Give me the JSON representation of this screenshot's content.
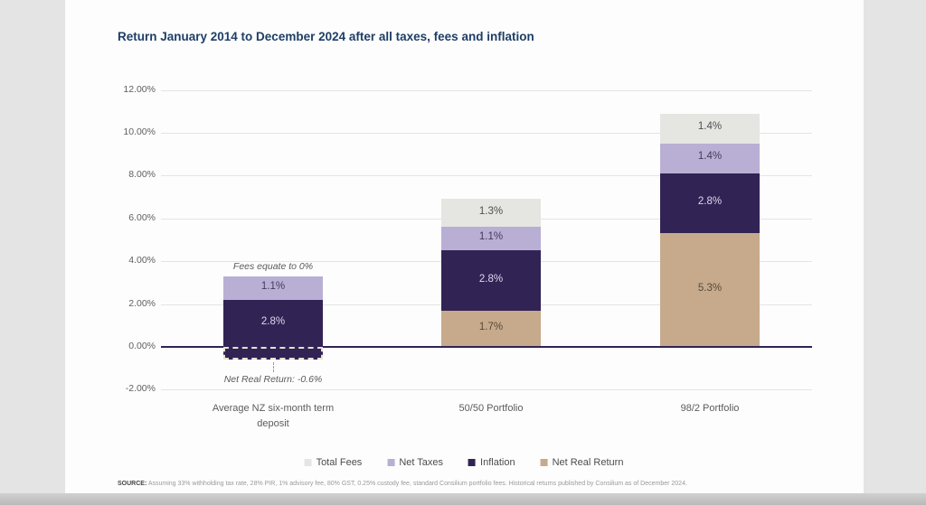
{
  "page": {
    "source_label": "SOURCE:",
    "source_text": " Assuming 33% withholding tax rate, 28% PIR, 1% advisory fee, 80% GST, 0.25% custody fee, standard Consilium portfolio fees. Historical returns published by Consilium as of December 2024."
  },
  "colors": {
    "title": "#1e3e66",
    "page_bg": "#e4e4e4",
    "card_bg": "#fdfdfd",
    "gridline": "#e4e4e4",
    "zero_axis_line": "#322355",
    "tick_label": "#5f5f5f",
    "category_label": "#5c5c5c",
    "annotation_text": "#5a5a5a",
    "dashed_outline": "#e9e1d2"
  },
  "chart_data": {
    "type": "bar",
    "stacked": true,
    "title": "Return January 2014 to December 2024 after all taxes, fees and inflation",
    "categories": [
      "Average NZ six-month term deposit",
      "50/50 Portfolio",
      "98/2 Portfolio"
    ],
    "series": [
      {
        "name": "Total Fees",
        "color": "#e5e6e2",
        "label_color": "#4f4f4f",
        "values": [
          0,
          1.3,
          1.4
        ]
      },
      {
        "name": "Net Taxes",
        "color": "#b9afd4",
        "label_color": "#433a5c",
        "values": [
          1.1,
          1.1,
          1.4
        ]
      },
      {
        "name": "Inflation",
        "color": "#322355",
        "label_color": "#ded8ee",
        "values": [
          2.8,
          2.8,
          2.8
        ]
      },
      {
        "name": "Net Real Return",
        "color": "#c7aa8b",
        "label_color": "#57493a",
        "values": [
          -0.6,
          1.7,
          5.3
        ]
      }
    ],
    "stack_order_bottom_to_top": [
      "Net Real Return",
      "Inflation",
      "Net Taxes",
      "Total Fees"
    ],
    "bar_totals": [
      3.3,
      6.9,
      10.9
    ],
    "y_ticks": [
      {
        "label": "12.00%",
        "value": 12
      },
      {
        "label": "10.00%",
        "value": 10
      },
      {
        "label": "8.00%",
        "value": 8
      },
      {
        "label": "6.00%",
        "value": 6
      },
      {
        "label": "4.00%",
        "value": 4
      },
      {
        "label": "2.00%",
        "value": 2
      },
      {
        "label": "0.00%",
        "value": 0
      },
      {
        "label": "-2.00%",
        "value": -2
      }
    ],
    "ylim": [
      -2,
      12
    ],
    "grid": true,
    "legend_position": "bottom",
    "annotations": [
      {
        "text": "Fees equate to 0%",
        "category": 0,
        "position": "above"
      },
      {
        "text": "Net Real Return: -0.6%",
        "category": 0,
        "position": "below"
      }
    ]
  }
}
